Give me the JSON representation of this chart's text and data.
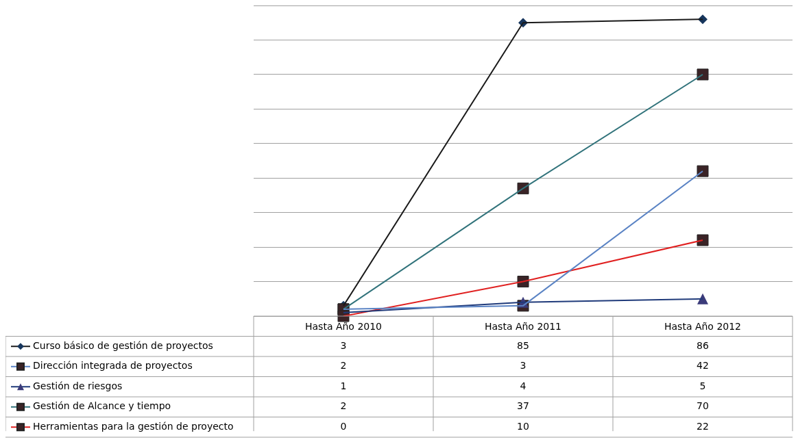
{
  "chart_data": {
    "type": "line",
    "categories": [
      "Hasta Año 2010",
      "Hasta Año 2011",
      "Hasta Año 2012"
    ],
    "series": [
      {
        "name": "Curso básico de gestión de proyectos",
        "color": "#1a1a1a",
        "marker": "diamond",
        "values": [
          3,
          85,
          86
        ]
      },
      {
        "name": "Dirección integrada de proyectos",
        "color": "#5a83c4",
        "marker": "square",
        "values": [
          2,
          3,
          42
        ]
      },
      {
        "name": "Gestión de riesgos",
        "color": "#1f3a7a",
        "marker": "triangle",
        "values": [
          1,
          4,
          5
        ]
      },
      {
        "name": "Gestión de Alcance y tiempo",
        "color": "#31737b",
        "marker": "square",
        "values": [
          2,
          37,
          70
        ]
      },
      {
        "name": "Herramientas para la gestión de proyecto",
        "color": "#e02020",
        "marker": "square",
        "values": [
          0,
          10,
          22
        ]
      }
    ],
    "ylim": [
      0,
      90
    ],
    "yticks": [
      {
        "value": 0,
        "label": null
      },
      {
        "value": 10,
        "label": null
      },
      {
        "value": 20,
        "label": null
      },
      {
        "value": 30,
        "label": null
      },
      {
        "value": 40,
        "label": null
      },
      {
        "value": 50,
        "label": null
      },
      {
        "value": 60,
        "label": null
      },
      {
        "value": 70,
        "label": null
      },
      {
        "value": 80,
        "label": null
      },
      {
        "value": 90,
        "label": null
      }
    ],
    "grid": "y",
    "legend": "bottom left",
    "data_labels": true,
    "tick_labels": "x"
  }
}
